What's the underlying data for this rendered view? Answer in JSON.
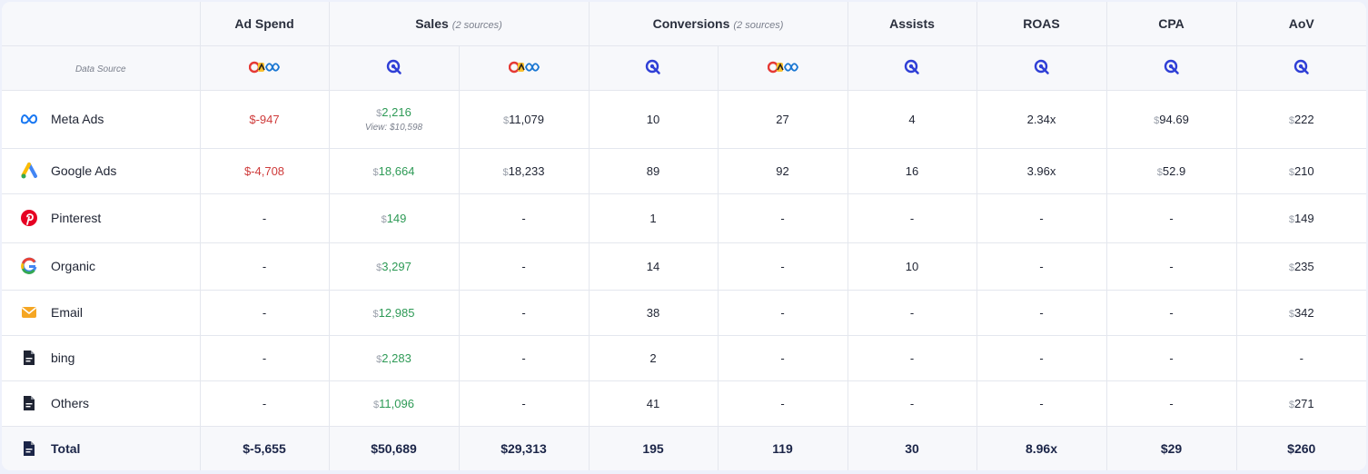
{
  "columns": {
    "ad_spend": "Ad Spend",
    "sales": "Sales",
    "sales_note": "(2 sources)",
    "conversions": "Conversions",
    "conversions_note": "(2 sources)",
    "assists": "Assists",
    "roas": "ROAS",
    "cpa": "CPA",
    "aov": "AoV"
  },
  "data_source_label": "Data Source",
  "source_icons": {
    "platform": "multi-platform-logo-icon",
    "tracker": "tracker-target-icon"
  },
  "currency_symbol": "$",
  "dash": "-",
  "rows": [
    {
      "channel": "Meta Ads",
      "icon": "meta-icon",
      "ad_spend": "-947",
      "sales_tracker": "2,216",
      "sales_tracker_view": "View: $10,598",
      "sales_platform": "11,079",
      "conv_tracker": "10",
      "conv_platform": "27",
      "assists": "4",
      "roas": "2.34x",
      "cpa": "94.69",
      "aov": "222"
    },
    {
      "channel": "Google Ads",
      "icon": "google-ads-icon",
      "ad_spend": "-4,708",
      "sales_tracker": "18,664",
      "sales_platform": "18,233",
      "conv_tracker": "89",
      "conv_platform": "92",
      "assists": "16",
      "roas": "3.96x",
      "cpa": "52.9",
      "aov": "210"
    },
    {
      "channel": "Pinterest",
      "icon": "pinterest-icon",
      "sales_tracker": "149",
      "conv_tracker": "1",
      "aov": "149"
    },
    {
      "channel": "Organic",
      "icon": "google-icon",
      "sales_tracker": "3,297",
      "conv_tracker": "14",
      "assists": "10",
      "aov": "235"
    },
    {
      "channel": "Email",
      "icon": "email-icon",
      "sales_tracker": "12,985",
      "conv_tracker": "38",
      "aov": "342"
    },
    {
      "channel": "bing",
      "icon": "document-icon",
      "sales_tracker": "2,283",
      "conv_tracker": "2"
    },
    {
      "channel": "Others",
      "icon": "document-icon",
      "sales_tracker": "11,096",
      "conv_tracker": "41",
      "aov": "271"
    }
  ],
  "total": {
    "channel": "Total",
    "icon": "document-icon",
    "ad_spend": "$-5,655",
    "sales_tracker": "$50,689",
    "sales_platform": "$29,313",
    "conv_tracker": "195",
    "conv_platform": "119",
    "assists": "30",
    "roas": "8.96x",
    "cpa": "$29",
    "aov": "$260"
  },
  "colors": {
    "negative": "#cf3b3b",
    "positive": "#2e9a56",
    "tracker_icon": "#2f3fd6",
    "total_text": "#1b2548"
  }
}
